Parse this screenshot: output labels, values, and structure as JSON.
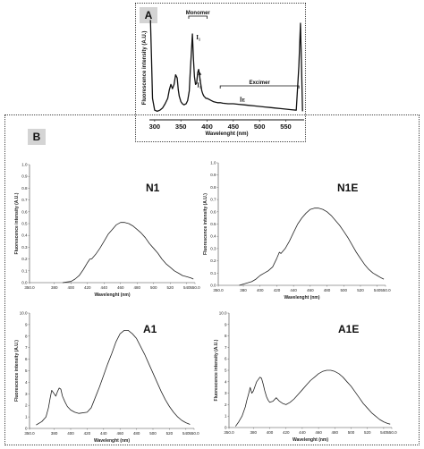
{
  "panelA": {
    "label": "A"
  },
  "panelB": {
    "label": "B"
  },
  "chart_data": [
    {
      "id": "A",
      "type": "line",
      "xlabel": "Wavelenght (nm)",
      "ylabel": "Fluorescence intensity (A.U.)",
      "xlim": [
        290,
        585
      ],
      "ylim": [
        0,
        1
      ],
      "xticks": [
        300,
        350,
        400,
        450,
        500,
        550
      ],
      "annotations": {
        "monomer": "Monomer",
        "excimer": "Excimer",
        "i1": "I₁",
        "i3": "I₃",
        "ie": "Iᴇ"
      },
      "x": [
        292,
        294,
        296,
        300,
        305,
        310,
        315,
        320,
        325,
        328,
        331,
        334,
        337,
        340,
        343,
        345,
        347,
        350,
        353,
        356,
        360,
        363,
        366,
        368,
        370,
        372,
        374,
        376,
        378,
        380,
        382,
        384,
        386,
        388,
        390,
        392,
        394,
        396,
        398,
        400,
        404,
        408,
        412,
        416,
        420,
        425,
        430,
        440,
        450,
        460,
        470,
        480,
        490,
        500,
        510,
        520,
        530,
        540,
        550,
        560,
        570,
        575,
        578,
        580,
        582
      ],
      "y": [
        0.93,
        0.6,
        0.2,
        0.09,
        0.08,
        0.09,
        0.11,
        0.15,
        0.2,
        0.28,
        0.33,
        0.29,
        0.33,
        0.42,
        0.39,
        0.28,
        0.22,
        0.17,
        0.15,
        0.14,
        0.15,
        0.18,
        0.27,
        0.45,
        0.62,
        0.8,
        0.56,
        0.4,
        0.33,
        0.34,
        0.44,
        0.47,
        0.4,
        0.33,
        0.27,
        0.24,
        0.22,
        0.21,
        0.2,
        0.2,
        0.19,
        0.18,
        0.17,
        0.165,
        0.16,
        0.16,
        0.155,
        0.15,
        0.15,
        0.145,
        0.14,
        0.135,
        0.13,
        0.125,
        0.12,
        0.115,
        0.11,
        0.105,
        0.1,
        0.095,
        0.09,
        0.5,
        0.9,
        0.5,
        0.08
      ]
    },
    {
      "id": "N1",
      "type": "line",
      "title": "N1",
      "xlabel": "Wavelenght (nm)",
      "ylabel": "Fluorescence intensity (A.U.)",
      "xlim": [
        350,
        550
      ],
      "ylim": [
        0,
        1
      ],
      "xticks": [
        350,
        380,
        400,
        420,
        440,
        460,
        480,
        500,
        520,
        540,
        550
      ],
      "xticklabels": [
        "350.0",
        "380",
        "400",
        "420",
        "440",
        "460",
        "480",
        "500",
        "520",
        "540",
        "550.0"
      ],
      "yticks": [
        0,
        0.1,
        0.2,
        0.3,
        0.4,
        0.5,
        0.6,
        0.7,
        0.8,
        0.9,
        1
      ],
      "yticklabels": [
        "0.0",
        "0.1",
        "0.2",
        "0.3",
        "0.4",
        "0.5",
        "0.6",
        "0.7",
        "0.8",
        "0.9",
        "1.0"
      ],
      "x": [
        390,
        395,
        400,
        405,
        410,
        415,
        420,
        423,
        425,
        430,
        435,
        440,
        445,
        450,
        455,
        460,
        465,
        470,
        475,
        480,
        485,
        490,
        495,
        500,
        505,
        510,
        515,
        520,
        525,
        530,
        535,
        540,
        545,
        548
      ],
      "y": [
        0.0,
        0.005,
        0.01,
        0.03,
        0.06,
        0.11,
        0.17,
        0.2,
        0.2,
        0.24,
        0.29,
        0.35,
        0.41,
        0.45,
        0.49,
        0.51,
        0.51,
        0.5,
        0.48,
        0.45,
        0.42,
        0.38,
        0.33,
        0.29,
        0.25,
        0.2,
        0.16,
        0.13,
        0.1,
        0.08,
        0.06,
        0.05,
        0.04,
        0.03
      ]
    },
    {
      "id": "N1E",
      "type": "line",
      "title": "N1E",
      "xlabel": "Wavelenght (nm)",
      "ylabel": "Fluorescence intensity (A.U.)",
      "xlim": [
        350,
        550
      ],
      "ylim": [
        0,
        1
      ],
      "xticks": [
        350,
        380,
        400,
        420,
        440,
        460,
        480,
        500,
        520,
        540,
        550
      ],
      "xticklabels": [
        "350.0",
        "380",
        "400",
        "420",
        "440",
        "460",
        "480",
        "500",
        "520",
        "540",
        "550.0"
      ],
      "yticks": [
        0,
        0.1,
        0.2,
        0.3,
        0.4,
        0.5,
        0.6,
        0.7,
        0.8,
        0.9,
        1
      ],
      "yticklabels": [
        "0.0",
        "0.1",
        "0.2",
        "0.3",
        "0.4",
        "0.5",
        "0.6",
        "0.7",
        "0.8",
        "0.9",
        "1.0"
      ],
      "x": [
        375,
        380,
        385,
        390,
        395,
        400,
        405,
        410,
        415,
        420,
        423,
        425,
        430,
        435,
        440,
        445,
        450,
        455,
        460,
        465,
        470,
        475,
        480,
        485,
        490,
        495,
        500,
        505,
        510,
        515,
        520,
        525,
        530,
        535,
        540,
        545,
        548
      ],
      "y": [
        0.0,
        0.01,
        0.02,
        0.03,
        0.05,
        0.08,
        0.1,
        0.12,
        0.15,
        0.22,
        0.27,
        0.26,
        0.3,
        0.36,
        0.43,
        0.5,
        0.55,
        0.59,
        0.62,
        0.63,
        0.63,
        0.62,
        0.6,
        0.57,
        0.53,
        0.49,
        0.44,
        0.39,
        0.33,
        0.27,
        0.22,
        0.17,
        0.13,
        0.1,
        0.08,
        0.06,
        0.05
      ]
    },
    {
      "id": "A1",
      "type": "line",
      "title": "A1",
      "xlabel": "Wavelenght (nm)",
      "ylabel": "Fluorescence intensity (A.U.)",
      "xlim": [
        350,
        550
      ],
      "ylim": [
        0,
        10
      ],
      "xticks": [
        350,
        380,
        400,
        420,
        440,
        460,
        480,
        500,
        520,
        540,
        550
      ],
      "xticklabels": [
        "350.0",
        "380",
        "400",
        "420",
        "440",
        "460",
        "480",
        "500",
        "520",
        "540",
        "550.0"
      ],
      "yticks": [
        0,
        1,
        2,
        3,
        4,
        5,
        6,
        7,
        8,
        9,
        10
      ],
      "yticklabels": [
        "0",
        "1",
        "2",
        "3",
        "4",
        "5",
        "6",
        "7",
        "8",
        "9",
        "10.0"
      ],
      "x": [
        358,
        365,
        370,
        373,
        375,
        377,
        380,
        382,
        384,
        386,
        388,
        390,
        393,
        396,
        400,
        405,
        410,
        420,
        425,
        430,
        435,
        440,
        445,
        450,
        455,
        460,
        465,
        470,
        475,
        480,
        485,
        490,
        495,
        500,
        505,
        510,
        515,
        520,
        525,
        530,
        535,
        540,
        545
      ],
      "y": [
        0.3,
        0.6,
        1.0,
        1.8,
        2.6,
        3.3,
        3.0,
        2.8,
        3.2,
        3.5,
        3.4,
        2.8,
        2.3,
        1.9,
        1.6,
        1.4,
        1.3,
        1.4,
        1.8,
        2.7,
        3.6,
        4.6,
        5.6,
        6.5,
        7.5,
        8.2,
        8.5,
        8.5,
        8.2,
        7.8,
        7.1,
        6.4,
        5.6,
        4.8,
        4.0,
        3.2,
        2.5,
        1.9,
        1.4,
        1.0,
        0.7,
        0.5,
        0.35
      ]
    },
    {
      "id": "A1E",
      "type": "line",
      "title": "A1E",
      "xlabel": "Wavelenght (nm)",
      "ylabel": "Fluorescence intensity (A.U.)",
      "xlim": [
        350,
        550
      ],
      "ylim": [
        0,
        10
      ],
      "xticks": [
        350,
        380,
        400,
        420,
        440,
        460,
        480,
        500,
        520,
        540,
        550
      ],
      "xticklabels": [
        "350.0",
        "380",
        "400",
        "420",
        "440",
        "460",
        "480",
        "500",
        "520",
        "540",
        "550.0"
      ],
      "yticks": [
        0,
        1,
        2,
        3,
        4,
        5,
        6,
        7,
        8,
        9,
        10
      ],
      "yticklabels": [
        "0",
        "1",
        "2",
        "3",
        "4",
        "5",
        "6",
        "7",
        "8",
        "9",
        "10.0"
      ],
      "x": [
        358,
        362,
        366,
        370,
        372,
        374,
        376,
        378,
        380,
        382,
        384,
        386,
        388,
        390,
        392,
        394,
        396,
        398,
        400,
        404,
        408,
        412,
        416,
        420,
        425,
        430,
        435,
        440,
        445,
        450,
        455,
        460,
        465,
        470,
        475,
        480,
        485,
        490,
        495,
        500,
        505,
        510,
        515,
        520,
        525,
        530,
        535,
        540,
        545,
        548
      ],
      "y": [
        0.1,
        0.5,
        1.0,
        1.8,
        2.4,
        2.9,
        3.5,
        3.0,
        3.2,
        3.6,
        4.0,
        4.2,
        4.4,
        4.3,
        3.8,
        3.2,
        2.7,
        2.4,
        2.2,
        2.3,
        2.6,
        2.3,
        2.1,
        2.0,
        2.2,
        2.5,
        2.9,
        3.3,
        3.7,
        4.1,
        4.4,
        4.7,
        4.9,
        5.0,
        5.0,
        4.9,
        4.7,
        4.4,
        4.0,
        3.6,
        3.1,
        2.6,
        2.1,
        1.7,
        1.3,
        1.0,
        0.7,
        0.5,
        0.35,
        0.3
      ]
    }
  ]
}
